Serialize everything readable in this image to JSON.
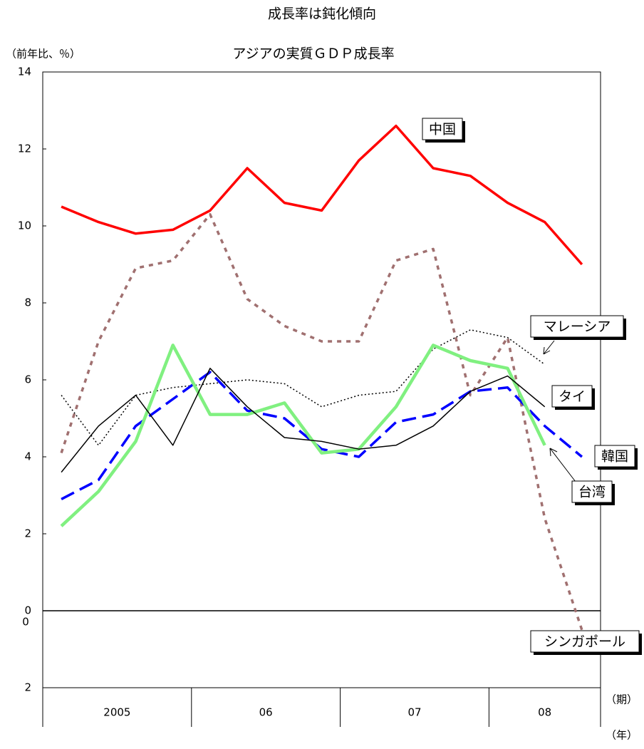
{
  "chart_data": {
    "type": "line",
    "title": "成長率は鈍化傾向",
    "subtitle": "アジアの実質ＧＤＰ成長率",
    "y_label": "（前年比、％）",
    "x_label_quarter": "（期）",
    "x_label_year": "（年）",
    "zero_axis_label": "0",
    "x": [
      null,
      null,
      null,
      null,
      null,
      null,
      null,
      null,
      null,
      null,
      null,
      null,
      null,
      null,
      null
    ],
    "year_groups": [
      {
        "label": "2005",
        "count": 4
      },
      {
        "label": "06",
        "count": 4
      },
      {
        "label": "07",
        "count": 4
      },
      {
        "label": "08",
        "count": 3
      }
    ],
    "ylim": [
      -2,
      14
    ],
    "yticks": [
      {
        "value": -2,
        "label": "2"
      },
      0,
      2,
      4,
      6,
      8,
      10,
      12,
      14
    ],
    "grid": false,
    "series": [
      {
        "name": "中国",
        "color": "#ff0000",
        "line_style": "solid",
        "values": [
          10.5,
          10.1,
          9.8,
          9.9,
          10.4,
          11.5,
          10.6,
          10.4,
          11.7,
          12.6,
          11.5,
          11.3,
          10.6,
          10.1,
          9.0
        ]
      },
      {
        "name": "シンガポール",
        "color": "#a07070",
        "line_style": "dotted",
        "values": [
          4.1,
          7.0,
          8.9,
          9.1,
          10.3,
          8.1,
          7.4,
          7.0,
          7.0,
          9.1,
          9.4,
          5.6,
          7.1,
          2.4,
          -0.5
        ]
      },
      {
        "name": "マレーシア",
        "color": "#000000",
        "line_style": "fine-dotted",
        "values": [
          5.6,
          4.3,
          5.6,
          5.8,
          5.9,
          6.0,
          5.9,
          5.3,
          5.6,
          5.7,
          6.8,
          7.3,
          7.1,
          6.4,
          null
        ]
      },
      {
        "name": "韓国",
        "color": "#0000ff",
        "line_style": "dashed",
        "values": [
          2.9,
          3.4,
          4.8,
          5.5,
          6.2,
          5.2,
          5.0,
          4.2,
          4.0,
          4.9,
          5.1,
          5.7,
          5.8,
          4.8,
          4.0
        ]
      },
      {
        "name": "台湾",
        "color": "#80f080",
        "line_style": "thick",
        "values": [
          2.2,
          3.1,
          4.4,
          6.9,
          5.1,
          5.1,
          5.4,
          4.1,
          4.2,
          5.3,
          6.9,
          6.5,
          6.3,
          4.3,
          null
        ]
      },
      {
        "name": "タイ",
        "color": "#000000",
        "line_style": "thin",
        "values": [
          3.6,
          4.8,
          5.6,
          4.3,
          6.3,
          5.3,
          4.5,
          4.4,
          4.2,
          4.3,
          4.8,
          5.7,
          6.1,
          5.3,
          null
        ]
      }
    ]
  }
}
